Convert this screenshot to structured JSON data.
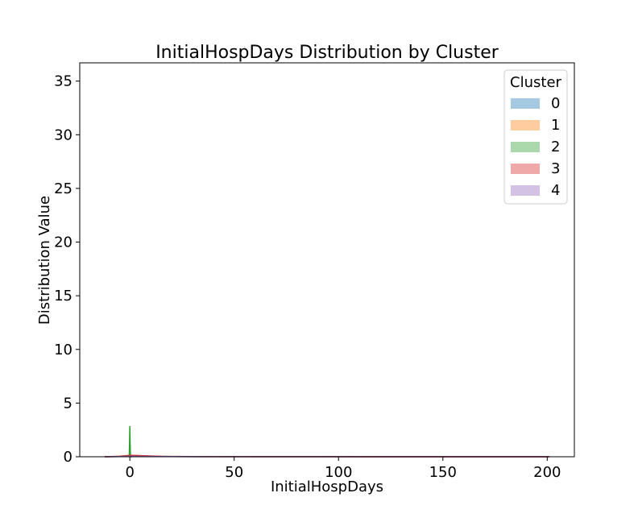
{
  "chart_data": {
    "type": "area",
    "title": "InitialHospDays Distribution by Cluster",
    "xlabel": "InitialHospDays",
    "ylabel": "Distribution Value",
    "xlim": [
      -24,
      213
    ],
    "ylim": [
      0,
      36.7
    ],
    "xticks": [
      0,
      50,
      100,
      150,
      200
    ],
    "yticks": [
      0,
      5,
      10,
      15,
      20,
      25,
      30,
      35
    ],
    "grid": false,
    "legend": {
      "title": "Cluster",
      "placement": "top-right",
      "entries": [
        "0",
        "1",
        "2",
        "3",
        "4"
      ]
    },
    "series": [
      {
        "name": "0",
        "color": "#1f77b4",
        "x": [
          -12,
          -5,
          0,
          5,
          10,
          20,
          40,
          80,
          120,
          160,
          201
        ],
        "values": [
          0.0,
          0.02,
          0.06,
          0.05,
          0.04,
          0.02,
          0.01,
          0.005,
          0.003,
          0.002,
          0.0
        ]
      },
      {
        "name": "1",
        "color": "#ff7f0e",
        "x": [
          -12,
          -5,
          0,
          5,
          10,
          20,
          40,
          80,
          120,
          160,
          201
        ],
        "values": [
          0.0,
          0.03,
          0.08,
          0.06,
          0.04,
          0.02,
          0.01,
          0.005,
          0.003,
          0.002,
          0.0
        ]
      },
      {
        "name": "2",
        "color": "#2ca02c",
        "x": [
          -0.5,
          -0.3,
          -0.15,
          0,
          0.15,
          0.3,
          0.5,
          1.0
        ],
        "values": [
          0.0,
          0.05,
          1.2,
          2.85,
          1.2,
          0.05,
          0.0,
          0.0
        ]
      },
      {
        "name": "3",
        "color": "#d62728",
        "x": [
          -12,
          -5,
          0,
          3,
          8,
          15,
          30,
          60,
          100,
          150,
          201
        ],
        "values": [
          0.0,
          0.05,
          0.13,
          0.12,
          0.08,
          0.04,
          0.02,
          0.01,
          0.005,
          0.003,
          0.0
        ]
      },
      {
        "name": "4",
        "color": "#9467bd",
        "x": [
          -12,
          -5,
          0,
          5,
          10,
          20,
          40,
          80,
          120,
          160,
          201
        ],
        "values": [
          0.0,
          0.02,
          0.05,
          0.04,
          0.03,
          0.02,
          0.01,
          0.005,
          0.003,
          0.002,
          0.0
        ]
      }
    ]
  }
}
